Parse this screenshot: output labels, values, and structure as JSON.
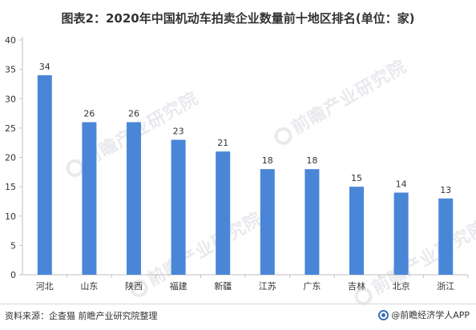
{
  "title": "图表2：2020年中国机动车拍卖企业数量前十地区排名(单位：家)",
  "watermark": "前瞻产业研究院",
  "footer": {
    "source": "资料来源：企查猫 前瞻产业研究院整理",
    "brand": "@前瞻经济学人APP"
  },
  "colors": {
    "bar": "#4a86d8",
    "axis": "#bfbfbf"
  },
  "chart_data": {
    "type": "bar",
    "title": "图表2：2020年中国机动车拍卖企业数量前十地区排名(单位：家)",
    "categories": [
      "河北",
      "山东",
      "陕西",
      "福建",
      "新疆",
      "江苏",
      "广东",
      "吉林",
      "北京",
      "浙江"
    ],
    "values": [
      34,
      26,
      26,
      23,
      21,
      18,
      18,
      15,
      14,
      13
    ],
    "yticks": [
      0,
      5,
      10,
      15,
      20,
      25,
      30,
      35,
      40
    ],
    "ylim": [
      0,
      40
    ],
    "xlabel": "",
    "ylabel": "",
    "grid": false,
    "data_labels": true
  }
}
